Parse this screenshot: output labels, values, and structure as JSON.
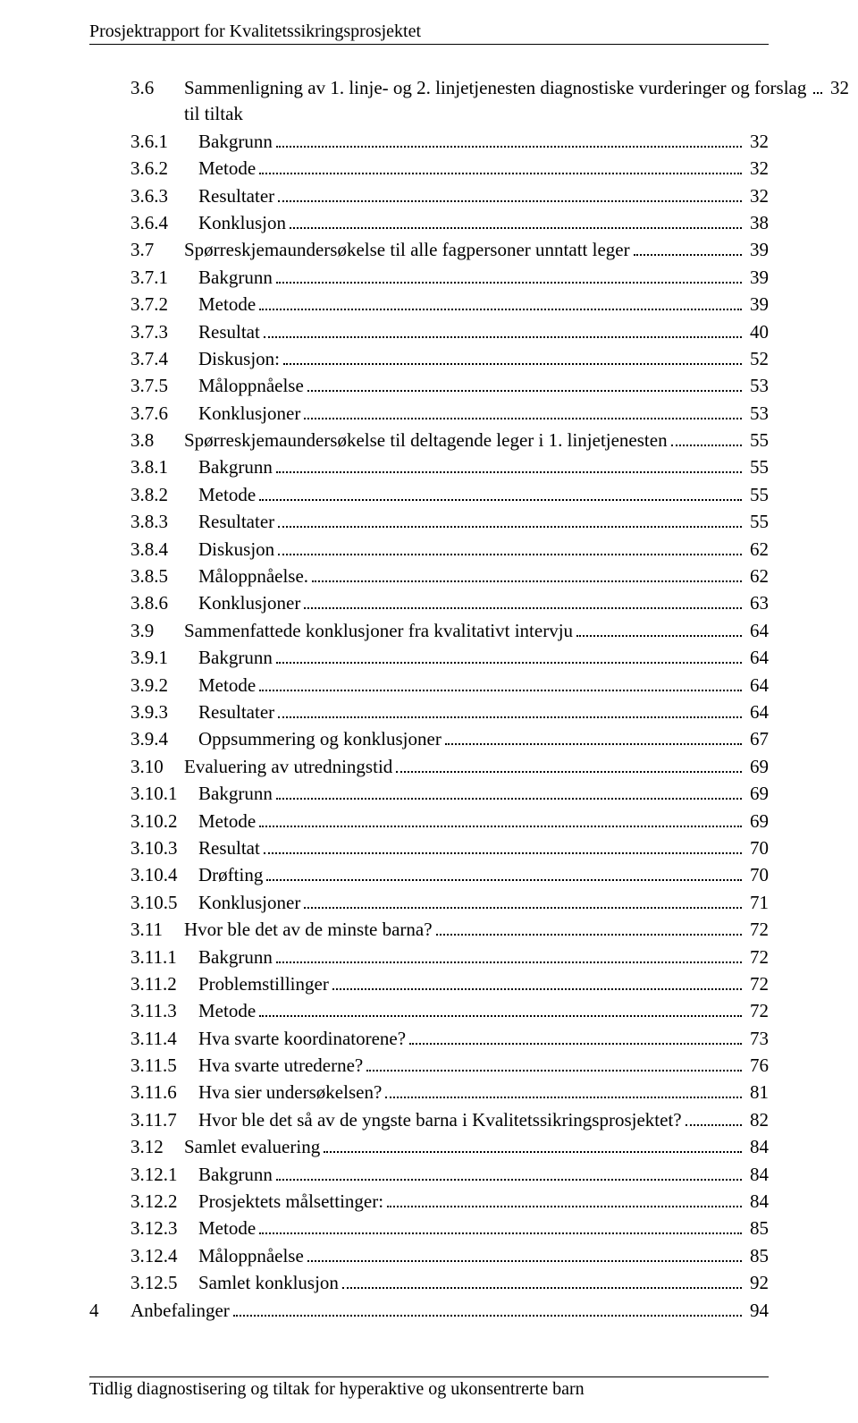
{
  "header": "Prosjektrapport for Kvalitetssikringsprosjektet",
  "footer": "Tidlig diagnostisering og tiltak for hyperaktive og ukonsentrerte barn",
  "toc": [
    {
      "indent": 1,
      "num": "3.6",
      "title": "Sammenligning av 1. linje- og 2. linjetjenesten diagnostiske vurderinger og forslag til tiltak",
      "page": "32",
      "wrapped": true
    },
    {
      "indent": 2,
      "num": "3.6.1",
      "title": "Bakgrunn",
      "page": "32"
    },
    {
      "indent": 2,
      "num": "3.6.2",
      "title": "Metode",
      "page": "32"
    },
    {
      "indent": 2,
      "num": "3.6.3",
      "title": "Resultater",
      "page": "32"
    },
    {
      "indent": 2,
      "num": "3.6.4",
      "title": "Konklusjon",
      "page": "38"
    },
    {
      "indent": 1,
      "num": "3.7",
      "title": "Spørreskjemaundersøkelse til alle fagpersoner unntatt leger",
      "page": "39"
    },
    {
      "indent": 2,
      "num": "3.7.1",
      "title": "Bakgrunn",
      "page": "39"
    },
    {
      "indent": 2,
      "num": "3.7.2",
      "title": "Metode",
      "page": "39"
    },
    {
      "indent": 2,
      "num": "3.7.3",
      "title": "Resultat",
      "page": "40"
    },
    {
      "indent": 2,
      "num": "3.7.4",
      "title": "Diskusjon:",
      "page": "52"
    },
    {
      "indent": 2,
      "num": "3.7.5",
      "title": "Måloppnåelse",
      "page": "53"
    },
    {
      "indent": 2,
      "num": "3.7.6",
      "title": "Konklusjoner",
      "page": "53"
    },
    {
      "indent": 1,
      "num": "3.8",
      "title": "Spørreskjemaundersøkelse til deltagende leger i 1. linjetjenesten",
      "page": "55"
    },
    {
      "indent": 2,
      "num": "3.8.1",
      "title": "Bakgrunn",
      "page": "55"
    },
    {
      "indent": 2,
      "num": "3.8.2",
      "title": "Metode",
      "page": "55"
    },
    {
      "indent": 2,
      "num": "3.8.3",
      "title": "Resultater",
      "page": "55"
    },
    {
      "indent": 2,
      "num": "3.8.4",
      "title": "Diskusjon",
      "page": "62"
    },
    {
      "indent": 2,
      "num": "3.8.5",
      "title": "Måloppnåelse.",
      "page": "62"
    },
    {
      "indent": 2,
      "num": "3.8.6",
      "title": "Konklusjoner",
      "page": "63"
    },
    {
      "indent": 1,
      "num": "3.9",
      "title": "Sammenfattede konklusjoner fra kvalitativt intervju",
      "page": "64"
    },
    {
      "indent": 2,
      "num": "3.9.1",
      "title": "Bakgrunn",
      "page": "64"
    },
    {
      "indent": 2,
      "num": "3.9.2",
      "title": "Metode",
      "page": "64"
    },
    {
      "indent": 2,
      "num": "3.9.3",
      "title": "Resultater",
      "page": "64"
    },
    {
      "indent": 2,
      "num": "3.9.4",
      "title": "Oppsummering og konklusjoner",
      "page": "67"
    },
    {
      "indent": 1,
      "num": "3.10",
      "title": "Evaluering av utredningstid",
      "page": "69"
    },
    {
      "indent": 2,
      "num": "3.10.1",
      "title": "Bakgrunn",
      "page": "69"
    },
    {
      "indent": 2,
      "num": "3.10.2",
      "title": "Metode",
      "page": "69"
    },
    {
      "indent": 2,
      "num": "3.10.3",
      "title": "Resultat",
      "page": "70"
    },
    {
      "indent": 2,
      "num": "3.10.4",
      "title": "Drøfting",
      "page": "70"
    },
    {
      "indent": 2,
      "num": "3.10.5",
      "title": "Konklusjoner",
      "page": "71"
    },
    {
      "indent": 1,
      "num": "3.11",
      "title": "Hvor ble det av de minste barna?",
      "page": "72"
    },
    {
      "indent": 2,
      "num": "3.11.1",
      "title": "Bakgrunn",
      "page": "72"
    },
    {
      "indent": 2,
      "num": "3.11.2",
      "title": "Problemstillinger",
      "page": "72"
    },
    {
      "indent": 2,
      "num": "3.11.3",
      "title": "Metode",
      "page": "72"
    },
    {
      "indent": 2,
      "num": "3.11.4",
      "title": "Hva svarte koordinatorene?",
      "page": "73"
    },
    {
      "indent": 2,
      "num": "3.11.5",
      "title": "Hva svarte utrederne?",
      "page": "76"
    },
    {
      "indent": 2,
      "num": "3.11.6",
      "title": "Hva sier undersøkelsen?",
      "page": "81"
    },
    {
      "indent": 2,
      "num": "3.11.7",
      "title": "Hvor ble det så av de yngste barna i Kvalitetssikringsprosjektet?",
      "page": "82"
    },
    {
      "indent": 1,
      "num": "3.12",
      "title": "Samlet evaluering",
      "page": "84"
    },
    {
      "indent": 2,
      "num": "3.12.1",
      "title": "Bakgrunn",
      "page": "84"
    },
    {
      "indent": 2,
      "num": "3.12.2",
      "title": "Prosjektets målsettinger:",
      "page": "84"
    },
    {
      "indent": 2,
      "num": "3.12.3",
      "title": "Metode",
      "page": "85"
    },
    {
      "indent": 2,
      "num": "3.12.4",
      "title": "Måloppnåelse",
      "page": "85"
    },
    {
      "indent": 2,
      "num": "3.12.5",
      "title": "Samlet konklusjon",
      "page": "92"
    },
    {
      "indent": 0,
      "num": "4",
      "title": "Anbefalinger",
      "page": "94"
    }
  ]
}
